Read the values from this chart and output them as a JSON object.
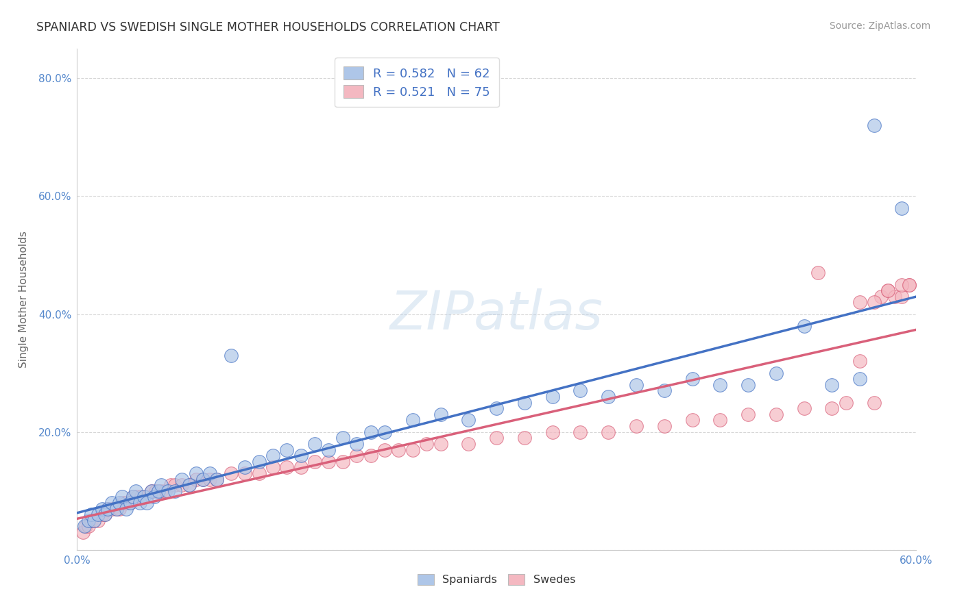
{
  "title": "SPANIARD VS SWEDISH SINGLE MOTHER HOUSEHOLDS CORRELATION CHART",
  "source": "Source: ZipAtlas.com",
  "ylabel": "Single Mother Households",
  "xlim": [
    0.0,
    0.6
  ],
  "ylim": [
    0.0,
    0.85
  ],
  "x_ticks": [
    0.0,
    0.1,
    0.2,
    0.3,
    0.4,
    0.5,
    0.6
  ],
  "x_tick_labels": [
    "0.0%",
    "",
    "",
    "",
    "",
    "",
    "60.0%"
  ],
  "y_ticks": [
    0.0,
    0.2,
    0.4,
    0.6,
    0.8
  ],
  "y_tick_labels": [
    "",
    "20.0%",
    "40.0%",
    "60.0%",
    "80.0%"
  ],
  "spaniards_R": 0.582,
  "spaniards_N": 62,
  "swedes_R": 0.521,
  "swedes_N": 75,
  "spaniards_color": "#aec6e8",
  "swedes_color": "#f4b8c1",
  "spaniards_line_color": "#4472c4",
  "swedes_line_color": "#d9607a",
  "background_color": "#ffffff",
  "grid_color": "#cccccc",
  "watermark": "ZIPatlas",
  "spaniards_x": [
    0.005,
    0.008,
    0.01,
    0.012,
    0.015,
    0.018,
    0.02,
    0.022,
    0.025,
    0.028,
    0.03,
    0.032,
    0.035,
    0.038,
    0.04,
    0.042,
    0.045,
    0.048,
    0.05,
    0.053,
    0.055,
    0.058,
    0.06,
    0.065,
    0.07,
    0.075,
    0.08,
    0.085,
    0.09,
    0.095,
    0.1,
    0.11,
    0.12,
    0.13,
    0.14,
    0.15,
    0.16,
    0.17,
    0.18,
    0.19,
    0.2,
    0.21,
    0.22,
    0.24,
    0.26,
    0.28,
    0.3,
    0.32,
    0.34,
    0.36,
    0.38,
    0.4,
    0.42,
    0.44,
    0.46,
    0.48,
    0.5,
    0.52,
    0.54,
    0.56,
    0.57,
    0.59
  ],
  "spaniards_y": [
    0.04,
    0.05,
    0.06,
    0.05,
    0.06,
    0.07,
    0.06,
    0.07,
    0.08,
    0.07,
    0.08,
    0.09,
    0.07,
    0.08,
    0.09,
    0.1,
    0.08,
    0.09,
    0.08,
    0.1,
    0.09,
    0.1,
    0.11,
    0.1,
    0.1,
    0.12,
    0.11,
    0.13,
    0.12,
    0.13,
    0.12,
    0.33,
    0.14,
    0.15,
    0.16,
    0.17,
    0.16,
    0.18,
    0.17,
    0.19,
    0.18,
    0.2,
    0.2,
    0.22,
    0.23,
    0.22,
    0.24,
    0.25,
    0.26,
    0.27,
    0.26,
    0.28,
    0.27,
    0.29,
    0.28,
    0.28,
    0.3,
    0.38,
    0.28,
    0.29,
    0.72,
    0.58
  ],
  "swedes_x": [
    0.004,
    0.006,
    0.008,
    0.01,
    0.012,
    0.015,
    0.018,
    0.02,
    0.022,
    0.025,
    0.028,
    0.03,
    0.033,
    0.035,
    0.038,
    0.04,
    0.043,
    0.046,
    0.05,
    0.053,
    0.056,
    0.06,
    0.063,
    0.067,
    0.07,
    0.075,
    0.08,
    0.085,
    0.09,
    0.095,
    0.1,
    0.11,
    0.12,
    0.13,
    0.14,
    0.15,
    0.16,
    0.17,
    0.18,
    0.19,
    0.2,
    0.21,
    0.22,
    0.23,
    0.24,
    0.25,
    0.26,
    0.28,
    0.3,
    0.32,
    0.34,
    0.36,
    0.38,
    0.4,
    0.42,
    0.44,
    0.46,
    0.48,
    0.5,
    0.52,
    0.53,
    0.54,
    0.55,
    0.56,
    0.57,
    0.575,
    0.58,
    0.585,
    0.59,
    0.595,
    0.56,
    0.57,
    0.58,
    0.59,
    0.595
  ],
  "swedes_y": [
    0.03,
    0.04,
    0.04,
    0.05,
    0.05,
    0.05,
    0.06,
    0.06,
    0.07,
    0.07,
    0.07,
    0.07,
    0.08,
    0.08,
    0.08,
    0.09,
    0.09,
    0.09,
    0.09,
    0.1,
    0.1,
    0.1,
    0.1,
    0.11,
    0.11,
    0.11,
    0.11,
    0.12,
    0.12,
    0.12,
    0.12,
    0.13,
    0.13,
    0.13,
    0.14,
    0.14,
    0.14,
    0.15,
    0.15,
    0.15,
    0.16,
    0.16,
    0.17,
    0.17,
    0.17,
    0.18,
    0.18,
    0.18,
    0.19,
    0.19,
    0.2,
    0.2,
    0.2,
    0.21,
    0.21,
    0.22,
    0.22,
    0.23,
    0.23,
    0.24,
    0.47,
    0.24,
    0.25,
    0.42,
    0.25,
    0.43,
    0.44,
    0.43,
    0.43,
    0.45,
    0.32,
    0.42,
    0.44,
    0.45,
    0.45
  ]
}
